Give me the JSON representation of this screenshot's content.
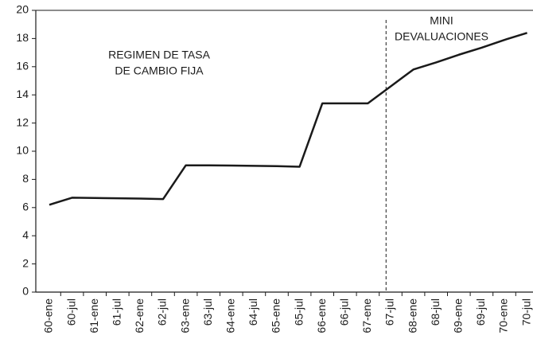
{
  "chart_data": {
    "type": "line",
    "categories": [
      "60-ene",
      "60-jul",
      "61-ene",
      "61-jul",
      "62-ene",
      "62-jul",
      "63-ene",
      "63-jul",
      "64-ene",
      "64-jul",
      "65-ene",
      "65-jul",
      "66-ene",
      "66-jul",
      "67-ene",
      "67-jul",
      "68-ene",
      "68-jul",
      "69-ene",
      "69-jul",
      "70-ene",
      "70-jul"
    ],
    "series": [
      {
        "color": "#1a1a1a",
        "values": [
          6.2,
          6.7,
          6.68,
          6.66,
          6.64,
          6.6,
          9.0,
          9.0,
          8.98,
          8.96,
          8.94,
          8.9,
          13.4,
          13.4,
          13.4,
          14.6,
          15.8,
          16.3,
          16.85,
          17.35,
          17.9,
          18.4
        ]
      }
    ],
    "ylim": [
      0,
      20
    ],
    "yticks": [
      0,
      2,
      4,
      6,
      8,
      10,
      12,
      14,
      16,
      18,
      20
    ],
    "grid": false,
    "annotations": [
      {
        "lines": [
          "REGIMEN DE TASA",
          "DE CAMBIO FIJA"
        ]
      },
      {
        "lines": [
          "MINI",
          "DEVALUACIONES"
        ]
      }
    ]
  }
}
